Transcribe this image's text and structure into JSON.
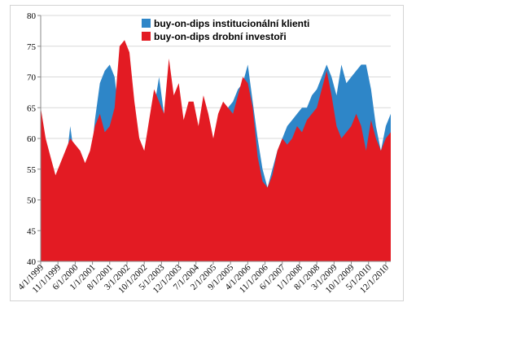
{
  "chart_data": {
    "type": "area",
    "title": "",
    "xlabel": "",
    "ylabel": "",
    "ylim": [
      40,
      80
    ],
    "yticks": [
      40,
      45,
      50,
      55,
      60,
      65,
      70,
      75,
      80
    ],
    "xlim": [
      "1999-04",
      "2011-02"
    ],
    "xtick_labels": [
      "4/1/1999",
      "11/1/1999",
      "6/1/2000",
      "1/1/2001",
      "8/1/2001",
      "3/1/2002",
      "10/1/2002",
      "5/1/2003",
      "12/1/2003",
      "7/1/2004",
      "2/1/2005",
      "9/1/2005",
      "4/1/2006",
      "11/1/2006",
      "6/1/2007",
      "1/1/2008",
      "8/1/2008",
      "3/1/2009",
      "10/1/2009",
      "5/1/2010",
      "12/1/2010"
    ],
    "grid": "horizontal",
    "legend_position": "top",
    "series": [
      {
        "name": "buy-on-dips institucionální klienti",
        "color": "#2e86c8",
        "points": [
          [
            "1999-04",
            64
          ],
          [
            "1999-06",
            55
          ],
          [
            "1999-08",
            47
          ],
          [
            "1999-10",
            43
          ],
          [
            "1999-12",
            50
          ],
          [
            "2000-02",
            55
          ],
          [
            "2000-04",
            62
          ],
          [
            "2000-06",
            56
          ],
          [
            "2000-08",
            52
          ],
          [
            "2000-10",
            48
          ],
          [
            "2000-12",
            55
          ],
          [
            "2001-02",
            63
          ],
          [
            "2001-04",
            69
          ],
          [
            "2001-06",
            71
          ],
          [
            "2001-08",
            72
          ],
          [
            "2001-10",
            70
          ],
          [
            "2001-12",
            63
          ],
          [
            "2002-02",
            63
          ],
          [
            "2002-04",
            65
          ],
          [
            "2002-06",
            62
          ],
          [
            "2002-08",
            58
          ],
          [
            "2002-10",
            57
          ],
          [
            "2002-12",
            62
          ],
          [
            "2003-02",
            65
          ],
          [
            "2003-04",
            70
          ],
          [
            "2003-06",
            64
          ],
          [
            "2003-08",
            56
          ],
          [
            "2003-10",
            57
          ],
          [
            "2003-12",
            60
          ],
          [
            "2004-02",
            62
          ],
          [
            "2004-04",
            58
          ],
          [
            "2004-06",
            55
          ],
          [
            "2004-08",
            53
          ],
          [
            "2004-10",
            52
          ],
          [
            "2004-12",
            55
          ],
          [
            "2005-02",
            58
          ],
          [
            "2005-04",
            62
          ],
          [
            "2005-06",
            64
          ],
          [
            "2005-08",
            65
          ],
          [
            "2005-10",
            66
          ],
          [
            "2005-12",
            68
          ],
          [
            "2006-02",
            69
          ],
          [
            "2006-04",
            72
          ],
          [
            "2006-06",
            66
          ],
          [
            "2006-08",
            60
          ],
          [
            "2006-10",
            55
          ],
          [
            "2006-12",
            52
          ],
          [
            "2007-02",
            55
          ],
          [
            "2007-04",
            58
          ],
          [
            "2007-06",
            60
          ],
          [
            "2007-08",
            62
          ],
          [
            "2007-10",
            63
          ],
          [
            "2007-12",
            64
          ],
          [
            "2008-02",
            65
          ],
          [
            "2008-04",
            65
          ],
          [
            "2008-06",
            67
          ],
          [
            "2008-08",
            68
          ],
          [
            "2008-10",
            70
          ],
          [
            "2008-12",
            72
          ],
          [
            "2009-02",
            70
          ],
          [
            "2009-04",
            67
          ],
          [
            "2009-06",
            72
          ],
          [
            "2009-08",
            69
          ],
          [
            "2009-10",
            70
          ],
          [
            "2009-12",
            71
          ],
          [
            "2010-02",
            72
          ],
          [
            "2010-04",
            72
          ],
          [
            "2010-06",
            68
          ],
          [
            "2010-08",
            62
          ],
          [
            "2010-10",
            58
          ],
          [
            "2010-12",
            62
          ],
          [
            "2011-02",
            64
          ]
        ]
      },
      {
        "name": "buy-on-dips drobní investoři",
        "color": "#e31b23",
        "points": [
          [
            "1999-04",
            65
          ],
          [
            "1999-06",
            60
          ],
          [
            "1999-08",
            57
          ],
          [
            "1999-10",
            54
          ],
          [
            "1999-12",
            56
          ],
          [
            "2000-02",
            58
          ],
          [
            "2000-04",
            60
          ],
          [
            "2000-06",
            59
          ],
          [
            "2000-08",
            58
          ],
          [
            "2000-10",
            56
          ],
          [
            "2000-12",
            58
          ],
          [
            "2001-02",
            62
          ],
          [
            "2001-04",
            64
          ],
          [
            "2001-06",
            61
          ],
          [
            "2001-08",
            62
          ],
          [
            "2001-10",
            65
          ],
          [
            "2001-12",
            75
          ],
          [
            "2002-02",
            76
          ],
          [
            "2002-04",
            74
          ],
          [
            "2002-06",
            66
          ],
          [
            "2002-08",
            60
          ],
          [
            "2002-10",
            58
          ],
          [
            "2002-12",
            63
          ],
          [
            "2003-02",
            68
          ],
          [
            "2003-04",
            66
          ],
          [
            "2003-06",
            64
          ],
          [
            "2003-08",
            73
          ],
          [
            "2003-10",
            67
          ],
          [
            "2003-12",
            69
          ],
          [
            "2004-02",
            63
          ],
          [
            "2004-04",
            66
          ],
          [
            "2004-06",
            66
          ],
          [
            "2004-08",
            62
          ],
          [
            "2004-10",
            67
          ],
          [
            "2004-12",
            64
          ],
          [
            "2005-02",
            60
          ],
          [
            "2005-04",
            64
          ],
          [
            "2005-06",
            66
          ],
          [
            "2005-08",
            65
          ],
          [
            "2005-10",
            64
          ],
          [
            "2005-12",
            67
          ],
          [
            "2006-02",
            70
          ],
          [
            "2006-04",
            69
          ],
          [
            "2006-06",
            65
          ],
          [
            "2006-08",
            57
          ],
          [
            "2006-10",
            53
          ],
          [
            "2006-12",
            52
          ],
          [
            "2007-02",
            54
          ],
          [
            "2007-04",
            58
          ],
          [
            "2007-06",
            60
          ],
          [
            "2007-08",
            59
          ],
          [
            "2007-10",
            60
          ],
          [
            "2007-12",
            62
          ],
          [
            "2008-02",
            61
          ],
          [
            "2008-04",
            63
          ],
          [
            "2008-06",
            64
          ],
          [
            "2008-08",
            65
          ],
          [
            "2008-10",
            68
          ],
          [
            "2008-12",
            71
          ],
          [
            "2009-02",
            67
          ],
          [
            "2009-04",
            62
          ],
          [
            "2009-06",
            60
          ],
          [
            "2009-08",
            61
          ],
          [
            "2009-10",
            62
          ],
          [
            "2009-12",
            64
          ],
          [
            "2010-02",
            62
          ],
          [
            "2010-04",
            58
          ],
          [
            "2010-06",
            63
          ],
          [
            "2010-08",
            60
          ],
          [
            "2010-10",
            58
          ],
          [
            "2010-12",
            60
          ],
          [
            "2011-02",
            61
          ]
        ]
      }
    ]
  }
}
